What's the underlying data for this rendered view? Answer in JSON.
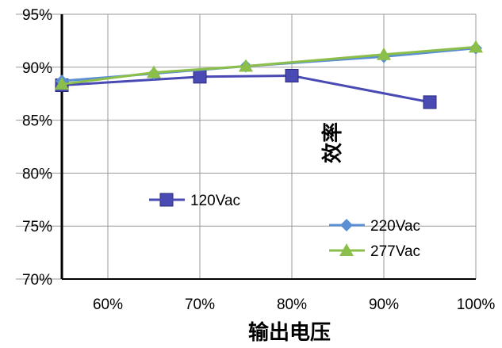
{
  "chart_data": {
    "type": "line",
    "xlabel": "输出电压",
    "ylabel": "效率",
    "categories": [
      "60%",
      "70%",
      "80%",
      "90%",
      "100%"
    ],
    "x_values": [
      60,
      70,
      80,
      90,
      100
    ],
    "xlim": [
      50,
      100
    ],
    "ylim": [
      70,
      95
    ],
    "yticks": [
      "70%",
      "75%",
      "80%",
      "85%",
      "90%",
      "95%"
    ],
    "ytick_values": [
      70,
      75,
      80,
      85,
      90,
      95
    ],
    "grid": true,
    "legend_position": "bottom-center",
    "series": [
      {
        "name": "120Vac",
        "color": "#4a4ab4",
        "marker": "square",
        "x": [
          55,
          70,
          80,
          95
        ],
        "values": [
          88.3,
          89.1,
          89.2,
          86.7
        ]
      },
      {
        "name": "220Vac",
        "color": "#5b8fd4",
        "marker": "diamond",
        "x": [
          55,
          65,
          75,
          90,
          100
        ],
        "values": [
          88.7,
          89.4,
          90.1,
          91.0,
          91.8
        ]
      },
      {
        "name": "277Vac",
        "color": "#8cbf4a",
        "marker": "triangle",
        "x": [
          55,
          65,
          75,
          90,
          100
        ],
        "values": [
          88.4,
          89.5,
          90.1,
          91.2,
          91.9
        ]
      }
    ]
  }
}
